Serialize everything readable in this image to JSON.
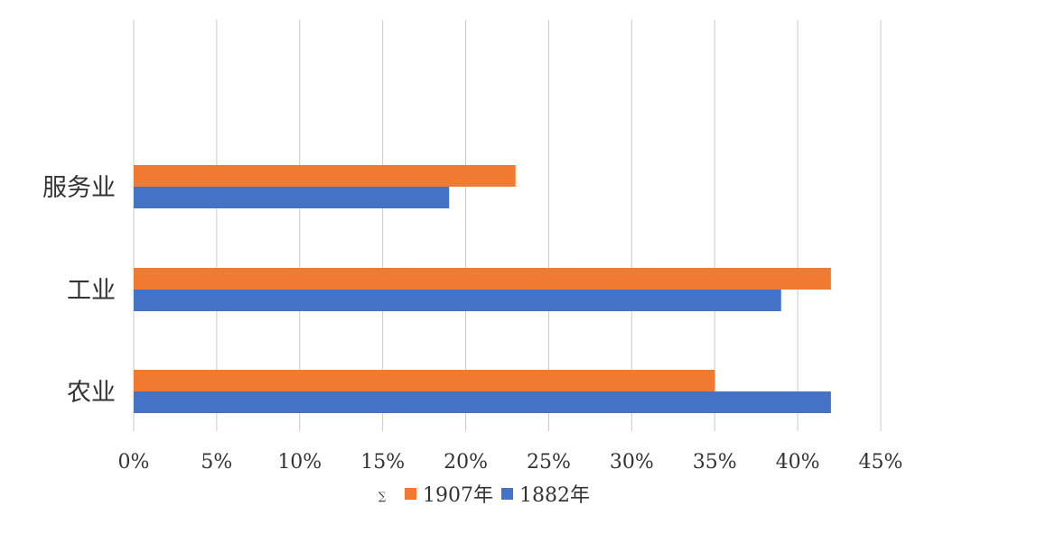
{
  "chart_data": {
    "type": "bar",
    "orientation": "horizontal",
    "categories": [
      "服务业",
      "工业",
      "农业"
    ],
    "series": [
      {
        "name": "1907年",
        "color": "#f07a2f",
        "values": [
          23,
          42,
          35
        ]
      },
      {
        "name": "1882年",
        "color": "#4472c4",
        "values": [
          19,
          39,
          42
        ]
      }
    ],
    "xlim": [
      0,
      45
    ],
    "x_ticks": [
      0,
      5,
      10,
      15,
      20,
      25,
      30,
      35,
      40,
      45
    ],
    "x_tick_labels": [
      "0%",
      "5%",
      "10%",
      "15%",
      "20%",
      "25%",
      "30%",
      "35%",
      "40%",
      "45%"
    ],
    "grid": "vertical",
    "legend_position": "bottom",
    "legend_marker_label": "∑",
    "title": "",
    "xlabel": "",
    "ylabel": ""
  }
}
